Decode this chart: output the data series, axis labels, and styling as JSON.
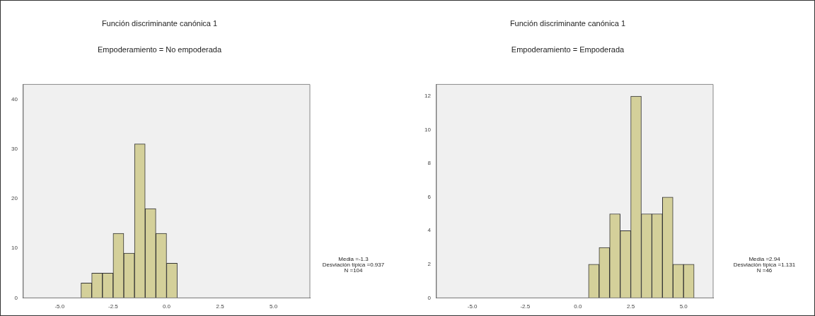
{
  "chart_data": [
    {
      "type": "histogram",
      "title": "Función discriminante canónica 1",
      "subtitle": "Empoderamiento = No empoderada",
      "bins": [
        -4.0,
        -3.5,
        -3.0,
        -2.5,
        -2.0,
        -1.5,
        -1.0,
        -0.5,
        0.0,
        0.5
      ],
      "values": [
        3,
        5,
        5,
        13,
        9,
        31,
        18,
        13,
        7
      ],
      "color": "#d4d09a",
      "xlim": [
        -6.7,
        6.7
      ],
      "xticks": [
        {
          "value": -5,
          "label": "-5.0"
        },
        {
          "value": -2.5,
          "label": "-2.5"
        },
        {
          "value": 0,
          "label": "0.0"
        },
        {
          "value": 2.5,
          "label": "2.5"
        },
        {
          "value": 5,
          "label": "5.0"
        }
      ],
      "ylim": [
        0,
        43
      ],
      "yticks": [
        0,
        10,
        20,
        30,
        40
      ],
      "annotations": [
        "Media =-1.3",
        "Desviación típica =0.937",
        "N =104"
      ]
    },
    {
      "type": "histogram",
      "title": "Función discriminante canónica 1",
      "subtitle": "Empoderamiento = Empoderada",
      "bins": [
        0.5,
        1.0,
        1.5,
        2.0,
        2.5,
        3.0,
        3.5,
        4.0,
        4.5,
        5.0,
        5.5
      ],
      "values": [
        2,
        3,
        5,
        4,
        12,
        5,
        5,
        6,
        2,
        2
      ],
      "color": "#d4d09a",
      "xlim": [
        -6.7,
        6.4
      ],
      "xticks": [
        {
          "value": -5,
          "label": "-5.0"
        },
        {
          "value": -2.5,
          "label": "-2.5"
        },
        {
          "value": 0,
          "label": "0.0"
        },
        {
          "value": 2.5,
          "label": "2.5"
        },
        {
          "value": 5,
          "label": "5.0"
        }
      ],
      "ylim": [
        0,
        12.7
      ],
      "yticks": [
        0,
        2,
        4,
        6,
        8,
        10,
        12
      ],
      "annotations": [
        "Media =2.94",
        "Desviación típica =1.131",
        "N =46"
      ]
    }
  ]
}
